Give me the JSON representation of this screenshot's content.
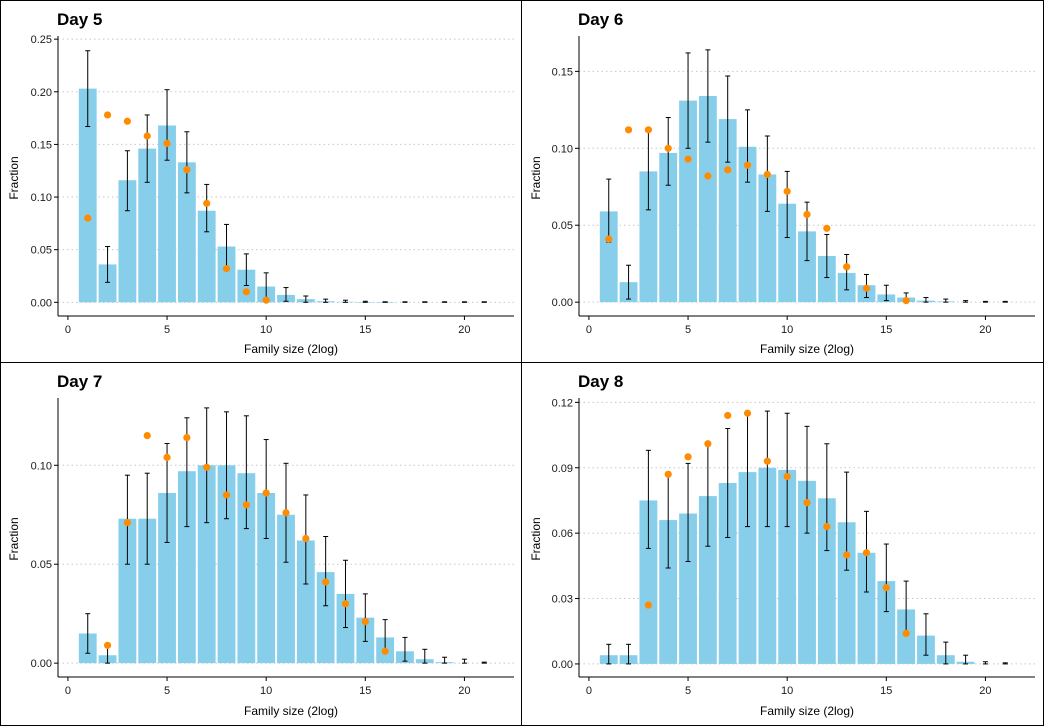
{
  "colors": {
    "bar": "#87CEEB",
    "point": "#FF8C00",
    "errorbar": "#000000",
    "grid": "#C8C8C8"
  },
  "chart_data": [
    {
      "type": "bar",
      "title": "Day 5",
      "xlabel": "Family size (2log)",
      "ylabel": "Fraction",
      "xlim": [
        -0.5,
        22.5
      ],
      "ylim": [
        -0.013,
        0.253
      ],
      "xticks": [
        0,
        5,
        10,
        15,
        20
      ],
      "xtick_labels": [
        "0",
        "5",
        "10",
        "15",
        "20"
      ],
      "yticks": [
        0,
        0.05,
        0.1,
        0.15,
        0.2,
        0.25
      ],
      "ytick_labels": [
        "0.00",
        "0.05",
        "0.10",
        "0.15",
        "0.20",
        "0.25"
      ],
      "grid": "horizontal dotted",
      "series": [
        {
          "kind": "bar",
          "x": [
            1,
            2,
            3,
            4,
            5,
            6,
            7,
            8,
            9,
            10,
            11,
            12,
            13,
            14,
            15,
            16,
            17,
            18,
            19,
            20,
            21
          ],
          "values": [
            0.203,
            0.036,
            0.116,
            0.146,
            0.168,
            0.133,
            0.087,
            0.053,
            0.031,
            0.015,
            0.007,
            0.003,
            0.001,
            0.0005,
            0.0002,
            0.0001,
            0,
            0,
            0,
            0,
            0
          ]
        },
        {
          "kind": "errorbar",
          "x": [
            1,
            2,
            3,
            4,
            5,
            6,
            7,
            8,
            9,
            10,
            11,
            12,
            13,
            14,
            15,
            16,
            17,
            18,
            19,
            20,
            21
          ],
          "low": [
            0.167,
            0.019,
            0.087,
            0.114,
            0.135,
            0.104,
            0.067,
            0.033,
            0.016,
            0.004,
            0.001,
            0,
            0,
            0,
            0,
            0,
            0,
            0,
            0,
            0,
            0
          ],
          "high": [
            0.239,
            0.053,
            0.144,
            0.178,
            0.202,
            0.162,
            0.112,
            0.074,
            0.046,
            0.028,
            0.014,
            0.006,
            0.003,
            0.002,
            0.001,
            0.0005,
            0.0005,
            0.0005,
            0.0005,
            0.0005,
            0.0005
          ]
        },
        {
          "kind": "point",
          "x": [
            1,
            2,
            3,
            4,
            5,
            6,
            7,
            8,
            9,
            10
          ],
          "values": [
            0.08,
            0.178,
            0.172,
            0.158,
            0.151,
            0.126,
            0.094,
            0.032,
            0.01,
            0.002
          ]
        }
      ]
    },
    {
      "type": "bar",
      "title": "Day 6",
      "xlabel": "Family size (2log)",
      "ylabel": "Fraction",
      "xlim": [
        -0.5,
        22.5
      ],
      "ylim": [
        -0.009,
        0.173
      ],
      "xticks": [
        0,
        5,
        10,
        15,
        20
      ],
      "xtick_labels": [
        "0",
        "5",
        "10",
        "15",
        "20"
      ],
      "yticks": [
        0,
        0.05,
        0.1,
        0.15
      ],
      "ytick_labels": [
        "0.00",
        "0.05",
        "0.10",
        "0.15"
      ],
      "grid": "horizontal dotted",
      "series": [
        {
          "kind": "bar",
          "x": [
            1,
            2,
            3,
            4,
            5,
            6,
            7,
            8,
            9,
            10,
            11,
            12,
            13,
            14,
            15,
            16,
            17,
            18,
            19,
            20,
            21
          ],
          "values": [
            0.059,
            0.013,
            0.085,
            0.097,
            0.131,
            0.134,
            0.119,
            0.101,
            0.083,
            0.064,
            0.046,
            0.03,
            0.019,
            0.011,
            0.005,
            0.003,
            0.001,
            0.0005,
            0,
            0,
            0
          ]
        },
        {
          "kind": "errorbar",
          "x": [
            1,
            2,
            3,
            4,
            5,
            6,
            7,
            8,
            9,
            10,
            11,
            12,
            13,
            14,
            15,
            16,
            17,
            18,
            19,
            20,
            21
          ],
          "low": [
            0.039,
            0.002,
            0.06,
            0.076,
            0.1,
            0.104,
            0.091,
            0.078,
            0.059,
            0.042,
            0.027,
            0.016,
            0.008,
            0.003,
            0.001,
            0,
            0,
            0,
            0,
            0,
            0
          ],
          "high": [
            0.08,
            0.024,
            0.111,
            0.12,
            0.162,
            0.164,
            0.147,
            0.125,
            0.108,
            0.085,
            0.065,
            0.044,
            0.031,
            0.018,
            0.011,
            0.006,
            0.003,
            0.002,
            0.001,
            0.0005,
            0.0005
          ]
        },
        {
          "kind": "point",
          "x": [
            1,
            2,
            3,
            4,
            5,
            6,
            7,
            8,
            9,
            10,
            11,
            12,
            13,
            14,
            16
          ],
          "values": [
            0.041,
            0.112,
            0.112,
            0.1,
            0.093,
            0.082,
            0.086,
            0.089,
            0.083,
            0.072,
            0.057,
            0.048,
            0.023,
            0.009,
            0.001
          ]
        }
      ]
    },
    {
      "type": "bar",
      "title": "Day 7",
      "xlabel": "Family size (2log)",
      "ylabel": "Fraction",
      "xlim": [
        -0.5,
        22.5
      ],
      "ylim": [
        -0.007,
        0.134
      ],
      "xticks": [
        0,
        5,
        10,
        15,
        20
      ],
      "xtick_labels": [
        "0",
        "5",
        "10",
        "15",
        "20"
      ],
      "yticks": [
        0,
        0.05,
        0.1
      ],
      "ytick_labels": [
        "0.00",
        "0.05",
        "0.10"
      ],
      "grid": "horizontal dotted",
      "series": [
        {
          "kind": "bar",
          "x": [
            1,
            2,
            3,
            4,
            5,
            6,
            7,
            8,
            9,
            10,
            11,
            12,
            13,
            14,
            15,
            16,
            17,
            18,
            19,
            20,
            21
          ],
          "values": [
            0.015,
            0.004,
            0.073,
            0.073,
            0.086,
            0.097,
            0.1,
            0.1,
            0.096,
            0.086,
            0.075,
            0.062,
            0.046,
            0.035,
            0.023,
            0.013,
            0.006,
            0.002,
            0.0005,
            0,
            0
          ]
        },
        {
          "kind": "errorbar",
          "x": [
            1,
            2,
            3,
            4,
            5,
            6,
            7,
            8,
            9,
            10,
            11,
            12,
            13,
            14,
            15,
            16,
            17,
            18,
            19,
            20,
            21
          ],
          "low": [
            0.005,
            0,
            0.05,
            0.05,
            0.061,
            0.069,
            0.071,
            0.073,
            0.068,
            0.063,
            0.051,
            0.04,
            0.029,
            0.018,
            0.011,
            0.005,
            0.001,
            0,
            0,
            0,
            0
          ],
          "high": [
            0.025,
            0.009,
            0.095,
            0.096,
            0.111,
            0.124,
            0.129,
            0.127,
            0.125,
            0.113,
            0.101,
            0.085,
            0.064,
            0.052,
            0.035,
            0.022,
            0.013,
            0.007,
            0.003,
            0.002,
            0.0005
          ]
        },
        {
          "kind": "point",
          "x": [
            2,
            3,
            4,
            5,
            6,
            7,
            8,
            9,
            10,
            11,
            12,
            13,
            14,
            15,
            16
          ],
          "values": [
            0.009,
            0.071,
            0.115,
            0.104,
            0.114,
            0.099,
            0.085,
            0.08,
            0.086,
            0.076,
            0.063,
            0.041,
            0.03,
            0.021,
            0.006
          ]
        }
      ]
    },
    {
      "type": "bar",
      "title": "Day 8",
      "xlabel": "Family size (2log)",
      "ylabel": "Fraction",
      "xlim": [
        -0.5,
        22.5
      ],
      "ylim": [
        -0.006,
        0.122
      ],
      "xticks": [
        0,
        5,
        10,
        15,
        20
      ],
      "xtick_labels": [
        "0",
        "5",
        "10",
        "15",
        "20"
      ],
      "yticks": [
        0,
        0.03,
        0.06,
        0.09,
        0.12
      ],
      "ytick_labels": [
        "0.00",
        "0.03",
        "0.06",
        "0.09",
        "0.12"
      ],
      "grid": "horizontal dotted",
      "series": [
        {
          "kind": "bar",
          "x": [
            1,
            2,
            3,
            4,
            5,
            6,
            7,
            8,
            9,
            10,
            11,
            12,
            13,
            14,
            15,
            16,
            17,
            18,
            19,
            20,
            21
          ],
          "values": [
            0.004,
            0.004,
            0.075,
            0.066,
            0.069,
            0.077,
            0.083,
            0.088,
            0.09,
            0.089,
            0.084,
            0.076,
            0.065,
            0.051,
            0.038,
            0.025,
            0.013,
            0.004,
            0.001,
            0,
            0
          ]
        },
        {
          "kind": "errorbar",
          "x": [
            1,
            2,
            3,
            4,
            5,
            6,
            7,
            8,
            9,
            10,
            11,
            12,
            13,
            14,
            15,
            16,
            17,
            18,
            19,
            20,
            21
          ],
          "low": [
            0,
            0,
            0.053,
            0.044,
            0.047,
            0.054,
            0.058,
            0.063,
            0.063,
            0.063,
            0.06,
            0.052,
            0.043,
            0.033,
            0.024,
            0.013,
            0.004,
            0,
            0,
            0,
            0
          ],
          "high": [
            0.009,
            0.009,
            0.098,
            0.088,
            0.092,
            0.1,
            0.108,
            0.116,
            0.116,
            0.115,
            0.109,
            0.101,
            0.088,
            0.07,
            0.055,
            0.038,
            0.023,
            0.01,
            0.004,
            0.001,
            0.0005
          ]
        },
        {
          "kind": "point",
          "x": [
            3,
            4,
            5,
            6,
            7,
            8,
            9,
            10,
            11,
            12,
            13,
            14,
            15,
            16
          ],
          "values": [
            0.027,
            0.087,
            0.095,
            0.101,
            0.114,
            0.115,
            0.093,
            0.086,
            0.074,
            0.063,
            0.05,
            0.051,
            0.035,
            0.014
          ]
        }
      ]
    }
  ]
}
